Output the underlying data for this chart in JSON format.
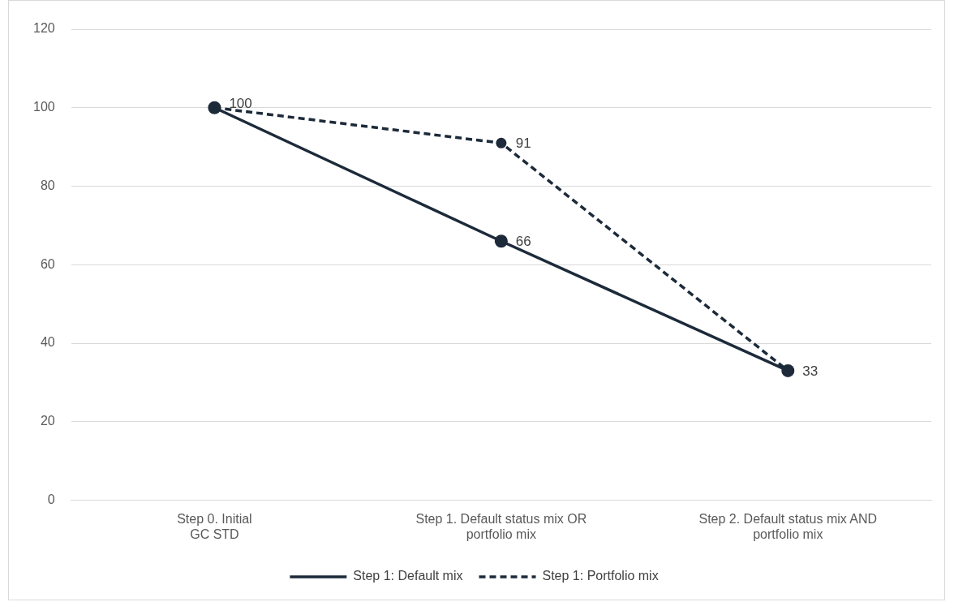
{
  "chart_data": {
    "type": "line",
    "categories": [
      "Step 0. Initial\nGC STD",
      "Step 1. Default status mix OR\nportfolio mix",
      "Step 2. Default status mix AND\nportfolio mix"
    ],
    "series": [
      {
        "name": "Step 1: Default mix",
        "color": "#1c2a3a",
        "values": [
          100,
          66,
          33
        ],
        "line_style": "solid",
        "value_labels": [
          null,
          "66",
          "33"
        ]
      },
      {
        "name": "Step 1: Portfolio mix",
        "color": "#1c2a3a",
        "values": [
          100,
          91,
          33
        ],
        "line_style": "dashed",
        "value_labels": [
          "100",
          "91",
          null
        ]
      }
    ],
    "ylim": [
      0,
      120
    ],
    "yticks": [
      0,
      20,
      40,
      60,
      80,
      100,
      120
    ],
    "grid": "y",
    "legend": "bottom",
    "marker": "circle"
  }
}
